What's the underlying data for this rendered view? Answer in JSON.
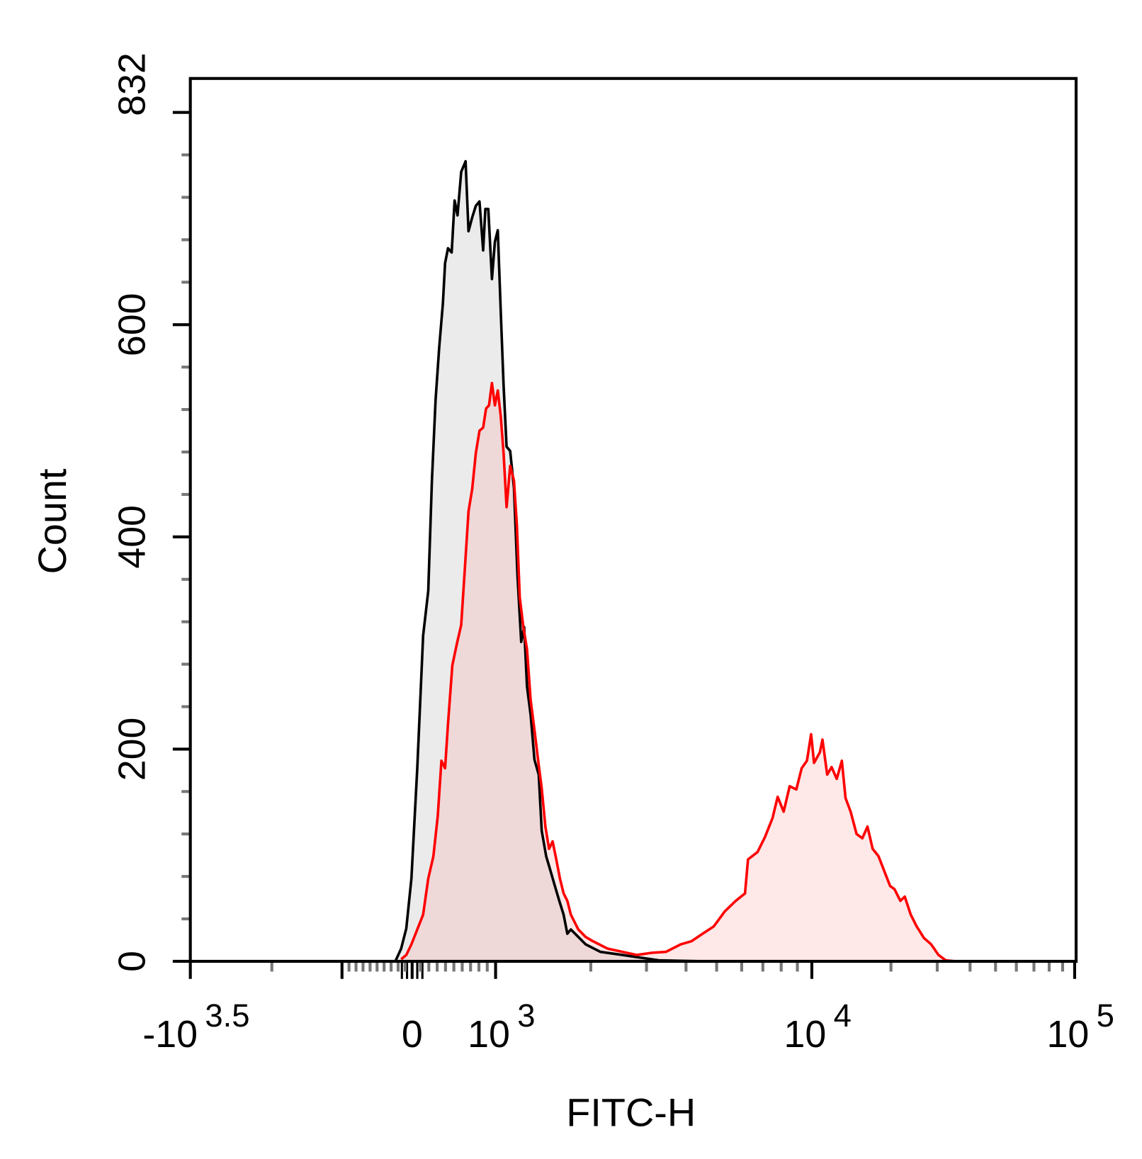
{
  "chart_data": {
    "type": "area",
    "xlabel": "FITC-H",
    "ylabel": "Count",
    "x_scale": "logicle (biexponential)",
    "ylim": [
      0,
      832
    ],
    "xlim": [
      -3162,
      100000
    ],
    "grid": false,
    "y_ticks": [
      {
        "value": 0,
        "label": "0"
      },
      {
        "value": 200,
        "label": "200"
      },
      {
        "value": 400,
        "label": "400"
      },
      {
        "value": 600,
        "label": "600"
      },
      {
        "value": 832,
        "label": "832"
      }
    ],
    "x_ticks": [
      {
        "value": -3162,
        "base": "-10",
        "exp": "3.5"
      },
      {
        "value": 0,
        "base": "0",
        "exp": ""
      },
      {
        "value": 1000,
        "base": "10",
        "exp": "3"
      },
      {
        "value": 10000,
        "base": "10",
        "exp": "4"
      },
      {
        "value": 100000,
        "base": "10",
        "exp": "5"
      }
    ],
    "series": [
      {
        "color": "#000000",
        "fill": "#ebebeb",
        "points": [
          [
            -240,
            0
          ],
          [
            -157,
            12
          ],
          [
            -84,
            31
          ],
          [
            -10,
            78
          ],
          [
            61,
            182
          ],
          [
            132,
            307
          ],
          [
            193,
            349
          ],
          [
            237,
            453
          ],
          [
            281,
            529
          ],
          [
            324,
            578
          ],
          [
            368,
            620
          ],
          [
            395,
            658
          ],
          [
            430,
            672
          ],
          [
            474,
            668
          ],
          [
            509,
            717
          ],
          [
            544,
            703
          ],
          [
            588,
            744
          ],
          [
            640,
            754
          ],
          [
            675,
            688
          ],
          [
            719,
            701
          ],
          [
            763,
            712
          ],
          [
            807,
            716
          ],
          [
            851,
            670
          ],
          [
            877,
            709
          ],
          [
            912,
            709
          ],
          [
            956,
            643
          ],
          [
            991,
            678
          ],
          [
            1016,
            689
          ],
          [
            1038,
            613
          ],
          [
            1060,
            543
          ],
          [
            1083,
            485
          ],
          [
            1112,
            481
          ],
          [
            1143,
            446
          ],
          [
            1173,
            363
          ],
          [
            1205,
            301
          ],
          [
            1231,
            315
          ],
          [
            1257,
            259
          ],
          [
            1291,
            232
          ],
          [
            1327,
            190
          ],
          [
            1369,
            176
          ],
          [
            1399,
            123
          ],
          [
            1445,
            99
          ],
          [
            1492,
            85
          ],
          [
            1540,
            71
          ],
          [
            1590,
            57
          ],
          [
            1641,
            44
          ],
          [
            1686,
            26
          ],
          [
            1730,
            30
          ],
          [
            1826,
            23
          ],
          [
            1926,
            16
          ],
          [
            2143,
            9
          ],
          [
            2514,
            6
          ],
          [
            3280,
            1
          ],
          [
            4515,
            0
          ]
        ]
      },
      {
        "color": "#ff0000",
        "fill": "rgba(255,150,150,0.22)",
        "points": [
          [
            -157,
            2
          ],
          [
            -84,
            6
          ],
          [
            -10,
            16
          ],
          [
            61,
            30
          ],
          [
            132,
            44
          ],
          [
            193,
            78
          ],
          [
            254,
            99
          ],
          [
            307,
            137
          ],
          [
            351,
            189
          ],
          [
            395,
            182
          ],
          [
            430,
            224
          ],
          [
            482,
            279
          ],
          [
            535,
            299
          ],
          [
            588,
            317
          ],
          [
            631,
            369
          ],
          [
            675,
            424
          ],
          [
            719,
            445
          ],
          [
            763,
            479
          ],
          [
            807,
            500
          ],
          [
            851,
            503
          ],
          [
            886,
            521
          ],
          [
            921,
            524
          ],
          [
            956,
            545
          ],
          [
            991,
            524
          ],
          [
            1016,
            538
          ],
          [
            1038,
            514
          ],
          [
            1060,
            479
          ],
          [
            1083,
            428
          ],
          [
            1112,
            467
          ],
          [
            1143,
            453
          ],
          [
            1167,
            412
          ],
          [
            1192,
            343
          ],
          [
            1224,
            315
          ],
          [
            1257,
            294
          ],
          [
            1291,
            246
          ],
          [
            1327,
            218
          ],
          [
            1362,
            190
          ],
          [
            1399,
            163
          ],
          [
            1437,
            127
          ],
          [
            1476,
            106
          ],
          [
            1515,
            113
          ],
          [
            1556,
            96
          ],
          [
            1598,
            78
          ],
          [
            1641,
            64
          ],
          [
            1686,
            57
          ],
          [
            1730,
            44
          ],
          [
            1777,
            37
          ],
          [
            1826,
            30
          ],
          [
            1926,
            23
          ],
          [
            2031,
            19
          ],
          [
            2259,
            12
          ],
          [
            2514,
            9
          ],
          [
            2797,
            6
          ],
          [
            3111,
            8
          ],
          [
            3461,
            9
          ],
          [
            3850,
            16
          ],
          [
            4165,
            19
          ],
          [
            4515,
            26
          ],
          [
            4898,
            33
          ],
          [
            5303,
            47
          ],
          [
            5745,
            57
          ],
          [
            6148,
            64
          ],
          [
            6283,
            96
          ],
          [
            6732,
            103
          ],
          [
            7107,
            117
          ],
          [
            7509,
            135
          ],
          [
            7797,
            155
          ],
          [
            8143,
            141
          ],
          [
            8510,
            165
          ],
          [
            8932,
            162
          ],
          [
            9286,
            182
          ],
          [
            9649,
            189
          ],
          [
            9946,
            214
          ],
          [
            10194,
            187
          ],
          [
            10731,
            197
          ],
          [
            10978,
            209
          ],
          [
            11441,
            176
          ],
          [
            11891,
            183
          ],
          [
            12437,
            172
          ],
          [
            13006,
            189
          ],
          [
            13429,
            154
          ],
          [
            14049,
            141
          ],
          [
            14793,
            120
          ],
          [
            15571,
            116
          ],
          [
            16283,
            127
          ],
          [
            17040,
            106
          ],
          [
            17932,
            99
          ],
          [
            18868,
            85
          ],
          [
            19851,
            71
          ],
          [
            20624,
            68
          ],
          [
            21714,
            57
          ],
          [
            22574,
            61
          ],
          [
            23785,
            44
          ],
          [
            25036,
            33
          ],
          [
            26689,
            22
          ],
          [
            28449,
            16
          ],
          [
            30326,
            6
          ],
          [
            32326,
            1
          ],
          [
            35120,
            0
          ]
        ]
      }
    ]
  }
}
